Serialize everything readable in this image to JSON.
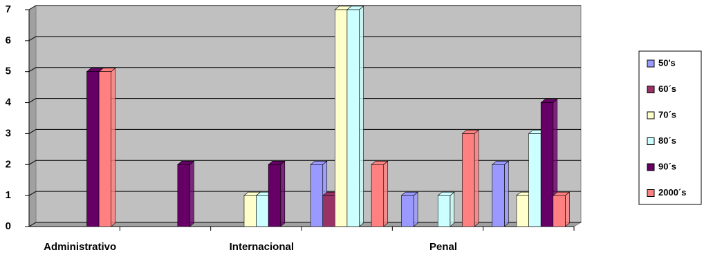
{
  "chart_data": {
    "type": "bar",
    "categories": [
      "Administrativo",
      null,
      "Internacional",
      null,
      "Penal",
      null
    ],
    "series": [
      {
        "name": "50's",
        "color": "#9999ff",
        "values": [
          0,
          0,
          0,
          2,
          1,
          2
        ]
      },
      {
        "name": "60´s",
        "color": "#993366",
        "values": [
          0,
          0,
          0,
          1,
          0,
          0
        ]
      },
      {
        "name": "70´s",
        "color": "#ffffcc",
        "values": [
          0,
          0,
          1,
          7,
          0,
          1
        ]
      },
      {
        "name": "80´s",
        "color": "#ccffff",
        "values": [
          0,
          0,
          1,
          7,
          1,
          3
        ]
      },
      {
        "name": "90´s",
        "color": "#660066",
        "values": [
          5,
          2,
          2,
          0,
          0,
          4
        ]
      },
      {
        "name": "2000´s",
        "color": "#ff8080",
        "values": [
          5,
          0,
          0,
          2,
          3,
          1
        ]
      }
    ],
    "ylim": [
      0,
      7
    ],
    "yticks": [
      0,
      1,
      2,
      3,
      4,
      5,
      6,
      7
    ],
    "grid": true,
    "legend": "right"
  }
}
